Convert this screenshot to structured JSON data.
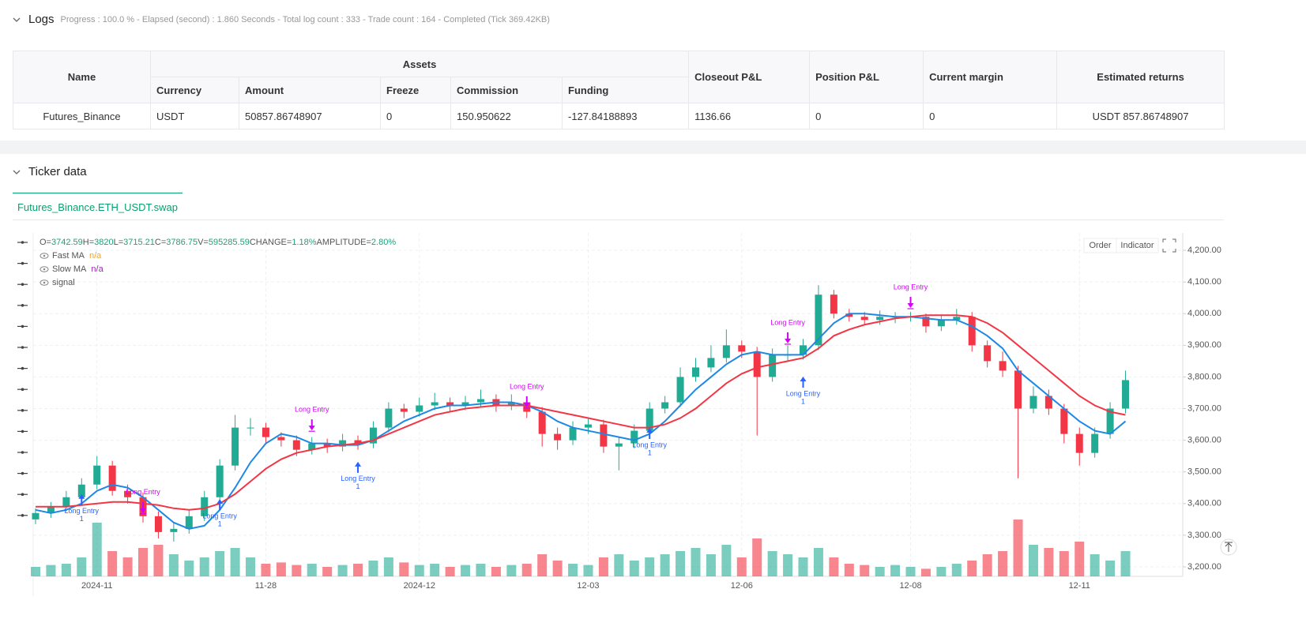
{
  "header": {
    "title": "Logs",
    "progress": "Progress : 100.0 % - Elapsed (second) : 1.860  Seconds - Total log count : 333 - Trade count : 164 - Completed (Tick 369.42KB)"
  },
  "table": {
    "group": "Assets",
    "columns": [
      "Name",
      "Currency",
      "Amount",
      "Freeze",
      "Commission",
      "Funding",
      "Closeout P&L",
      "Position P&L",
      "Current margin",
      "Estimated returns"
    ],
    "rows": [
      [
        "Futures_Binance",
        "USDT",
        "50857.86748907",
        "0",
        "150.950622",
        "-127.84188893",
        "1136.66",
        "0",
        "0",
        "USDT 857.86748907"
      ]
    ]
  },
  "ticker": {
    "title": "Ticker data",
    "tab": "Futures_Binance.ETH_USDT.swap",
    "buttons": [
      "Order",
      "Indicator"
    ]
  },
  "chart_data": {
    "type": "candlestick",
    "info": [
      {
        "label": "O=",
        "value": "3742.59"
      },
      {
        "label": "H=",
        "value": "3820"
      },
      {
        "label": "L=",
        "value": "3715.21"
      },
      {
        "label": "C=",
        "value": "3786.75"
      },
      {
        "label": "V=",
        "value": "595285.59"
      },
      {
        "label": "CHANGE=",
        "value": "1.18%"
      },
      {
        "label": "AMPLITUDE=",
        "value": "2.80%"
      }
    ],
    "up_color": "#22ab94",
    "down_color": "#f23645",
    "ylim": [
      3170,
      4255
    ],
    "yticks": [
      {
        "value": 3200,
        "label": "3,200.00"
      },
      {
        "value": 3300,
        "label": "3,300.00"
      },
      {
        "value": 3400,
        "label": "3,400.00"
      },
      {
        "value": 3500,
        "label": "3,500.00"
      },
      {
        "value": 3600,
        "label": "3,600.00"
      },
      {
        "value": 3700,
        "label": "3,700.00"
      },
      {
        "value": 3800,
        "label": "3,800.00"
      },
      {
        "value": 3900,
        "label": "3,900.00"
      },
      {
        "value": 4000,
        "label": "4,000.00"
      },
      {
        "value": 4100,
        "label": "4,100.00"
      },
      {
        "value": 4200,
        "label": "4,200.00"
      }
    ],
    "categories": [
      null,
      null,
      null,
      null,
      "2024-11",
      null,
      null,
      null,
      null,
      null,
      null,
      null,
      null,
      null,
      null,
      "11-28",
      null,
      null,
      null,
      null,
      null,
      null,
      null,
      null,
      null,
      "2024-12",
      null,
      null,
      null,
      null,
      null,
      null,
      null,
      null,
      null,
      null,
      "12-03",
      null,
      null,
      null,
      null,
      null,
      null,
      null,
      null,
      null,
      "12-06",
      null,
      null,
      null,
      null,
      null,
      null,
      null,
      null,
      null,
      null,
      "12-08",
      null,
      null,
      null,
      null,
      null,
      null,
      null,
      null,
      null,
      null,
      "12-11",
      null,
      null,
      null
    ],
    "ohlc": [
      [
        3350,
        3385,
        3335,
        3370
      ],
      [
        3370,
        3405,
        3355,
        3390
      ],
      [
        3390,
        3440,
        3375,
        3420
      ],
      [
        3420,
        3480,
        3405,
        3460
      ],
      [
        3460,
        3550,
        3445,
        3520
      ],
      [
        3520,
        3535,
        3425,
        3440
      ],
      [
        3440,
        3460,
        3400,
        3420
      ],
      [
        3420,
        3435,
        3340,
        3360
      ],
      [
        3360,
        3375,
        3290,
        3310
      ],
      [
        3310,
        3340,
        3280,
        3320
      ],
      [
        3320,
        3380,
        3305,
        3360
      ],
      [
        3360,
        3440,
        3345,
        3420
      ],
      [
        3420,
        3540,
        3405,
        3520
      ],
      [
        3520,
        3680,
        3505,
        3640
      ],
      [
        3640,
        3670,
        3615,
        3640
      ],
      [
        3640,
        3655,
        3590,
        3610
      ],
      [
        3610,
        3625,
        3580,
        3600
      ],
      [
        3600,
        3615,
        3550,
        3570
      ],
      [
        3570,
        3610,
        3555,
        3590
      ],
      [
        3590,
        3605,
        3560,
        3580
      ],
      [
        3580,
        3620,
        3565,
        3600
      ],
      [
        3600,
        3615,
        3570,
        3590
      ],
      [
        3590,
        3660,
        3575,
        3640
      ],
      [
        3640,
        3720,
        3625,
        3700
      ],
      [
        3700,
        3715,
        3670,
        3690
      ],
      [
        3690,
        3735,
        3675,
        3710
      ],
      [
        3710,
        3750,
        3695,
        3720
      ],
      [
        3720,
        3735,
        3690,
        3710
      ],
      [
        3710,
        3740,
        3695,
        3720
      ],
      [
        3720,
        3760,
        3705,
        3730
      ],
      [
        3730,
        3745,
        3690,
        3710
      ],
      [
        3710,
        3745,
        3695,
        3720
      ],
      [
        3720,
        3735,
        3670,
        3690
      ],
      [
        3690,
        3705,
        3580,
        3620
      ],
      [
        3620,
        3640,
        3570,
        3600
      ],
      [
        3600,
        3660,
        3585,
        3640
      ],
      [
        3640,
        3670,
        3620,
        3650
      ],
      [
        3650,
        3665,
        3560,
        3580
      ],
      [
        3580,
        3610,
        3505,
        3590
      ],
      [
        3590,
        3650,
        3575,
        3630
      ],
      [
        3630,
        3720,
        3615,
        3700
      ],
      [
        3700,
        3740,
        3685,
        3720
      ],
      [
        3720,
        3830,
        3705,
        3800
      ],
      [
        3800,
        3860,
        3785,
        3830
      ],
      [
        3830,
        3900,
        3815,
        3860
      ],
      [
        3860,
        3950,
        3845,
        3900
      ],
      [
        3900,
        3915,
        3860,
        3880
      ],
      [
        3880,
        3895,
        3615,
        3800
      ],
      [
        3800,
        3890,
        3785,
        3870
      ],
      [
        3870,
        3900,
        3850,
        3870
      ],
      [
        3870,
        3920,
        3855,
        3900
      ],
      [
        3900,
        4090,
        3885,
        4060
      ],
      [
        4060,
        4075,
        3985,
        4000
      ],
      [
        4000,
        4015,
        3975,
        3990
      ],
      [
        3990,
        4005,
        3965,
        3980
      ],
      [
        3980,
        4010,
        3965,
        3990
      ],
      [
        3990,
        4005,
        3970,
        3990
      ],
      [
        3990,
        4005,
        3975,
        3990
      ],
      [
        3990,
        4000,
        3940,
        3960
      ],
      [
        3960,
        3995,
        3945,
        3980
      ],
      [
        3980,
        4015,
        3965,
        3990
      ],
      [
        3990,
        4005,
        3880,
        3900
      ],
      [
        3900,
        3915,
        3830,
        3850
      ],
      [
        3850,
        3880,
        3800,
        3820
      ],
      [
        3820,
        3835,
        3480,
        3700
      ],
      [
        3700,
        3770,
        3685,
        3740
      ],
      [
        3740,
        3760,
        3680,
        3700
      ],
      [
        3700,
        3715,
        3590,
        3620
      ],
      [
        3620,
        3640,
        3520,
        3560
      ],
      [
        3560,
        3640,
        3545,
        3620
      ],
      [
        3620,
        3720,
        3605,
        3700
      ],
      [
        3700,
        3820,
        3685,
        3790
      ]
    ],
    "volume_lim": [
      0,
      100
    ],
    "volumes": [
      15,
      18,
      20,
      30,
      85,
      40,
      30,
      45,
      50,
      35,
      25,
      30,
      40,
      45,
      30,
      20,
      22,
      18,
      20,
      15,
      18,
      20,
      25,
      30,
      22,
      18,
      20,
      15,
      18,
      20,
      15,
      18,
      20,
      35,
      25,
      20,
      18,
      30,
      35,
      25,
      30,
      35,
      40,
      45,
      35,
      50,
      30,
      60,
      40,
      35,
      30,
      45,
      30,
      20,
      18,
      15,
      18,
      15,
      12,
      15,
      20,
      25,
      35,
      40,
      90,
      50,
      45,
      40,
      55,
      35,
      25,
      40
    ],
    "series": [
      {
        "name": "Fast MA",
        "status": "n/a",
        "status_color": "#f5a623",
        "color": "#1e88e5",
        "values": [
          3380,
          3370,
          3380,
          3400,
          3440,
          3460,
          3450,
          3420,
          3380,
          3340,
          3320,
          3330,
          3380,
          3450,
          3530,
          3590,
          3620,
          3610,
          3590,
          3590,
          3585,
          3585,
          3600,
          3630,
          3660,
          3680,
          3700,
          3710,
          3710,
          3715,
          3720,
          3720,
          3710,
          3690,
          3660,
          3640,
          3630,
          3620,
          3610,
          3600,
          3620,
          3660,
          3710,
          3760,
          3800,
          3840,
          3870,
          3880,
          3870,
          3870,
          3870,
          3920,
          3970,
          4000,
          4000,
          3995,
          3990,
          3990,
          3985,
          3980,
          3980,
          3960,
          3930,
          3890,
          3820,
          3780,
          3740,
          3700,
          3660,
          3630,
          3620,
          3660
        ]
      },
      {
        "name": "Slow MA",
        "status": "n/a",
        "status_color": "#9c27b0",
        "color": "#f23645",
        "values": [
          3390,
          3390,
          3390,
          3395,
          3400,
          3405,
          3405,
          3400,
          3395,
          3385,
          3380,
          3385,
          3400,
          3430,
          3470,
          3510,
          3540,
          3560,
          3570,
          3580,
          3585,
          3590,
          3600,
          3620,
          3640,
          3660,
          3680,
          3690,
          3700,
          3705,
          3710,
          3710,
          3710,
          3700,
          3690,
          3680,
          3670,
          3660,
          3650,
          3640,
          3640,
          3650,
          3670,
          3700,
          3740,
          3780,
          3810,
          3830,
          3840,
          3850,
          3860,
          3890,
          3930,
          3950,
          3965,
          3975,
          3985,
          3990,
          3995,
          3995,
          3995,
          3990,
          3970,
          3940,
          3900,
          3860,
          3820,
          3780,
          3740,
          3710,
          3690,
          3680
        ]
      }
    ],
    "signal_label": "signal",
    "annotations": [
      {
        "text": "Long Entry",
        "count": "1",
        "index": 3,
        "price": 3430,
        "side": "below",
        "color": "#2962ff"
      },
      {
        "text": "Long Entry",
        "index": 7,
        "price": 3370,
        "side": "above",
        "color": "#d500f9"
      },
      {
        "text": "Long Entry",
        "count": "1",
        "index": 12,
        "price": 3414,
        "side": "below",
        "color": "#2962ff"
      },
      {
        "text": "Long Entry",
        "index": 18,
        "price": 3631,
        "side": "above",
        "color": "#d500f9"
      },
      {
        "text": "Long Entry",
        "count": "1",
        "index": 21,
        "price": 3532,
        "side": "below",
        "color": "#2962ff"
      },
      {
        "text": "Long Entry",
        "index": 32,
        "price": 3704,
        "side": "above",
        "color": "#d500f9"
      },
      {
        "text": "Long Entry",
        "count": "1",
        "index": 40,
        "price": 3639,
        "side": "below",
        "color": "#2962ff"
      },
      {
        "text": "Long Entry",
        "index": 49,
        "price": 3906,
        "side": "above",
        "color": "#d500f9"
      },
      {
        "text": "Long Entry",
        "count": "1",
        "index": 50,
        "price": 3801,
        "side": "below",
        "color": "#2962ff"
      },
      {
        "text": "Long Entry",
        "index": 57,
        "price": 4018,
        "side": "above",
        "color": "#d500f9"
      }
    ]
  }
}
